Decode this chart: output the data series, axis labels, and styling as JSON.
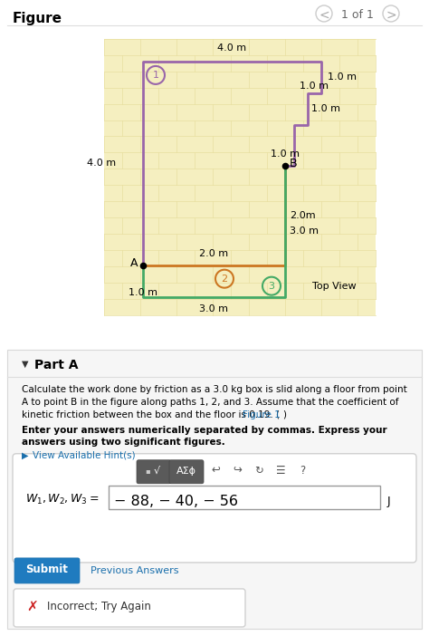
{
  "figure_title": "Figure",
  "figure_nav": "1 of 1",
  "outer_bg": "#ffffff",
  "diagram_bg": "#f5efc0",
  "path1_color": "#9966aa",
  "path2_color": "#cc7722",
  "path3_color": "#44aa66",
  "part_a_header": "Part A",
  "problem_text_1": "Calculate the work done by friction as a 3.0 kg box is slid along a floor from point",
  "problem_text_2": "A to point B in the figure along paths 1, 2, and 3. Assume that the coefficient of",
  "problem_text_3": "kinetic friction between the box and the floor is 0.19. (Figure 1)",
  "figure1_link": "Figure 1",
  "bold_text_1": "Enter your answers numerically separated by commas. Express your",
  "bold_text_2": "answers using two significant figures.",
  "hint_text": "View Available Hint(s)",
  "answer_text": "− 88, − 40, − 56",
  "unit_text": "J",
  "submit_text": "Submit",
  "prev_answers_text": "Previous Answers",
  "incorrect_text": "Incorrect; Try Again",
  "toolbar_sym": "AΣϕ",
  "dim_40m_top": "4.0 m",
  "dim_40m_left": "4.0 m",
  "dim_10m_r1": "1.0 m",
  "dim_10m_r2": "1.0 m",
  "dim_10m_r3": "1.0 m",
  "dim_10m_B": "1.0 m",
  "dim_20m_vert": "2.0m",
  "dim_30m_vert": "3.0 m",
  "dim_20m_horiz": "2.0 m",
  "dim_10m_A": "1.0 m",
  "dim_30m_horiz": "3.0 m",
  "top_view_text": "Top View",
  "label_A": "A",
  "label_B": "B"
}
